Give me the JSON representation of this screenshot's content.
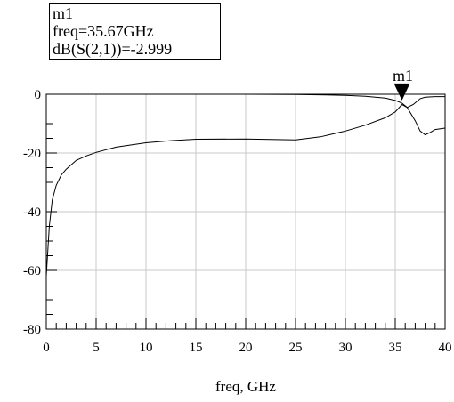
{
  "marker": {
    "name": "m1",
    "freq_line": "freq=35.67GHz",
    "value_line": "dB(S(2,1))=-2.999"
  },
  "chart_data": {
    "type": "line",
    "xlabel": "freq, GHz",
    "ylabel": "",
    "xlim": [
      0,
      40
    ],
    "ylim": [
      -80,
      0
    ],
    "x_ticks": [
      0,
      5,
      10,
      15,
      20,
      25,
      30,
      35,
      40
    ],
    "y_ticks": [
      0,
      -20,
      -40,
      -60,
      -80
    ],
    "grid": true,
    "series": [
      {
        "x": [
          0,
          0.3,
          0.6,
          1,
          1.5,
          2,
          3,
          4,
          5,
          7,
          10,
          12.5,
          15,
          20,
          25,
          27.5,
          30,
          32,
          34,
          35,
          35.67,
          36.2,
          37,
          37.5,
          38,
          38.5,
          39,
          40
        ],
        "values": [
          -62,
          -45,
          -36,
          -31,
          -27.5,
          -25.5,
          -22.5,
          -21,
          -19.8,
          -18,
          -16.5,
          -15.8,
          -15.3,
          -15.2,
          -15.5,
          -14.5,
          -12.5,
          -10.5,
          -8,
          -6,
          -3.5,
          -4.5,
          -9,
          -12.5,
          -13.8,
          -13,
          -12,
          -11.5
        ]
      },
      {
        "x": [
          12.5,
          15,
          20,
          25,
          28,
          30,
          32,
          34,
          35,
          35.67,
          36.2,
          36.8,
          37.5,
          38,
          39,
          40
        ],
        "values": [
          0,
          0,
          0,
          -0.1,
          -0.2,
          -0.4,
          -0.7,
          -1.3,
          -2.1,
          -2.999,
          -4.5,
          -3.5,
          -1.5,
          -1,
          -0.8,
          -0.8
        ]
      }
    ],
    "annotations": [
      {
        "label": "m1",
        "x": 35.67,
        "y": -2.999
      }
    ]
  }
}
